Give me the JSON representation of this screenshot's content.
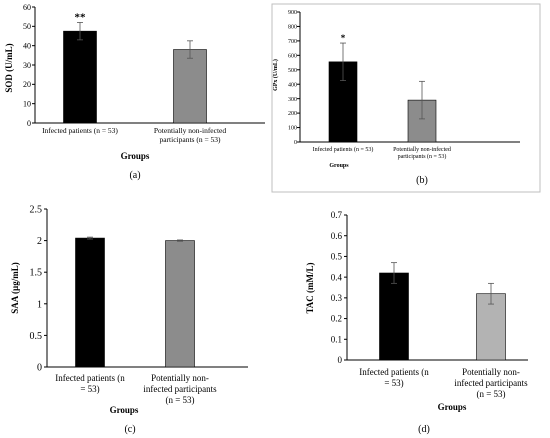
{
  "chart_data": [
    {
      "id": "a",
      "type": "bar",
      "panel_label": "(a)",
      "categories": [
        "Infected patients (n = 53)",
        "Potentially non-infected participants (n = 53)"
      ],
      "values": [
        47.5,
        38
      ],
      "errors": [
        4.5,
        4.5
      ],
      "significance": [
        "**",
        ""
      ],
      "colors": [
        "#000000",
        "#8c8c8c"
      ],
      "xlabel": "Groups",
      "ylabel": "SOD (U/mL)",
      "ylim": [
        0,
        60
      ],
      "yticks": [
        "0",
        "10",
        "20",
        "30",
        "40",
        "50",
        "60"
      ],
      "grid": false
    },
    {
      "id": "b",
      "type": "bar",
      "panel_label": "(b)",
      "categories": [
        "Infected patients (n = 53)",
        "Potentially non-infected participants (n = 53)"
      ],
      "values": [
        555,
        290
      ],
      "errors": [
        130,
        130
      ],
      "significance": [
        "*",
        ""
      ],
      "colors": [
        "#000000",
        "#8c8c8c"
      ],
      "xlabel": "Groups",
      "ylabel": "GPx (U/mL)",
      "ylim": [
        0,
        900
      ],
      "yticks": [
        "0",
        "100",
        "200",
        "300",
        "400",
        "500",
        "600",
        "700",
        "800",
        "900"
      ],
      "grid": false
    },
    {
      "id": "c",
      "type": "bar",
      "panel_label": "(c)",
      "categories": [
        "Infected patients (n = 53)",
        "Potentially non-infected participants (n = 53)"
      ],
      "values": [
        2.04,
        2.0
      ],
      "errors": [
        0.015,
        0.01
      ],
      "significance": [
        "",
        ""
      ],
      "colors": [
        "#000000",
        "#8c8c8c"
      ],
      "xlabel": "Groups",
      "ylabel": "SAA (µg/mL)",
      "ylim": [
        0,
        2.5
      ],
      "yticks": [
        "0",
        "0.5",
        "1",
        "1.5",
        "2",
        "2.5"
      ],
      "grid": false
    },
    {
      "id": "d",
      "type": "bar",
      "panel_label": "(d)",
      "categories": [
        "Infected patients (n = 53)",
        "Potentially non-infected participants (n = 53)"
      ],
      "values": [
        0.42,
        0.32
      ],
      "errors": [
        0.05,
        0.05
      ],
      "significance": [
        "",
        ""
      ],
      "colors": [
        "#000000",
        "#b3b3b3"
      ],
      "xlabel": "Groups",
      "ylabel": "TAC (mM/L)",
      "ylim": [
        0,
        0.7
      ],
      "yticks": [
        "0",
        "0.1",
        "0.2",
        "0.3",
        "0.4",
        "0.5",
        "0.6",
        "0.7"
      ],
      "grid": false
    }
  ]
}
